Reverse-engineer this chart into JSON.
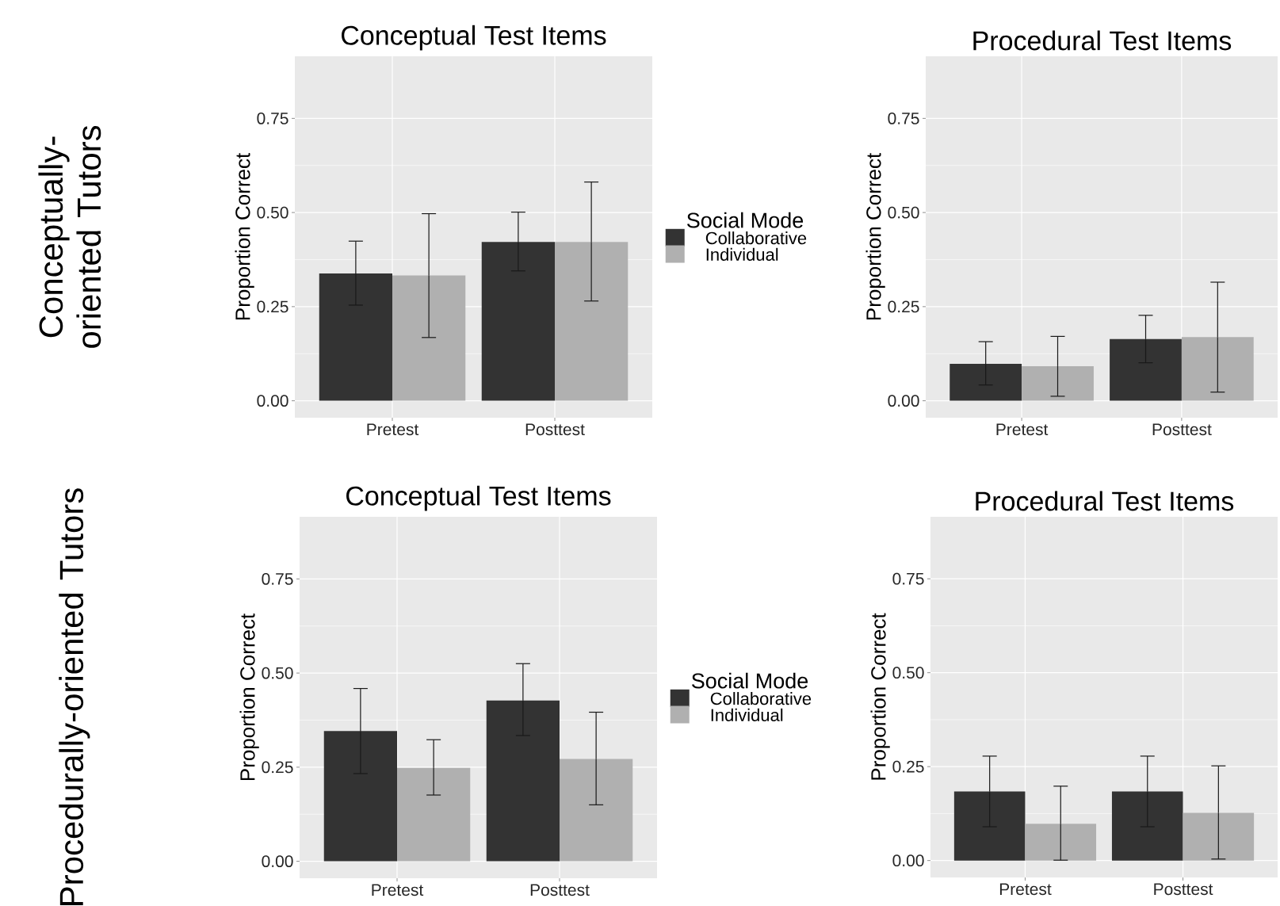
{
  "chart_data": [
    {
      "type": "bar",
      "title": "Conceptual Test Items",
      "ylabel": "Proportion Correct",
      "legend_title": "Social Mode",
      "legend": "right",
      "grid": true,
      "annotations": [
        "Conceptually-oriented Tutors"
      ],
      "categories": [
        "Pretest",
        "Posttest"
      ],
      "ylim": [
        -0.045,
        0.915
      ],
      "yticks": [
        {
          "value": 0,
          "label": "0.00"
        },
        {
          "value": 0.25,
          "label": "0.25"
        },
        {
          "value": 0.5,
          "label": "0.50"
        },
        {
          "value": 0.75,
          "label": "0.75"
        }
      ],
      "series": [
        {
          "name": "Collaborative",
          "color": "#333333",
          "values": [
            0.338,
            0.422
          ],
          "errors": [
            [
              0.254,
              0.424
            ],
            [
              0.345,
              0.501
            ]
          ]
        },
        {
          "name": "Individual",
          "color": "#b0b0b0",
          "values": [
            0.333,
            0.422
          ],
          "errors": [
            [
              0.168,
              0.497
            ],
            [
              0.265,
              0.581
            ]
          ]
        }
      ]
    },
    {
      "type": "bar",
      "title": "Procedural Test Items",
      "ylabel": "Proportion Correct",
      "grid": true,
      "categories": [
        "Pretest",
        "Posttest"
      ],
      "ylim": [
        -0.045,
        0.915
      ],
      "yticks": [
        {
          "value": 0,
          "label": "0.00"
        },
        {
          "value": 0.25,
          "label": "0.25"
        },
        {
          "value": 0.5,
          "label": "0.50"
        },
        {
          "value": 0.75,
          "label": "0.75"
        }
      ],
      "series": [
        {
          "color": "#333333",
          "values": [
            0.098,
            0.164
          ],
          "errors": [
            [
              0.042,
              0.157
            ],
            [
              0.101,
              0.227
            ]
          ]
        },
        {
          "color": "#b0b0b0",
          "values": [
            0.092,
            0.169
          ],
          "errors": [
            [
              0.012,
              0.171
            ],
            [
              0.023,
              0.315
            ]
          ]
        }
      ]
    },
    {
      "type": "bar",
      "title": "Conceptual Test Items",
      "ylabel": "Proportion Correct",
      "legend_title": "Social Mode",
      "legend": "right",
      "grid": true,
      "annotations": [
        "Procedurally-oriented Tutors"
      ],
      "categories": [
        "Pretest",
        "Posttest"
      ],
      "ylim": [
        -0.045,
        0.915
      ],
      "yticks": [
        {
          "value": 0,
          "label": "0.00"
        },
        {
          "value": 0.25,
          "label": "0.25"
        },
        {
          "value": 0.5,
          "label": "0.50"
        },
        {
          "value": 0.75,
          "label": "0.75"
        }
      ],
      "series": [
        {
          "name": "Collaborative",
          "color": "#333333",
          "values": [
            0.346,
            0.427
          ],
          "errors": [
            [
              0.233,
              0.459
            ],
            [
              0.334,
              0.525
            ]
          ]
        },
        {
          "name": "Individual",
          "color": "#b0b0b0",
          "values": [
            0.248,
            0.272
          ],
          "errors": [
            [
              0.176,
              0.323
            ],
            [
              0.15,
              0.396
            ]
          ]
        }
      ]
    },
    {
      "type": "bar",
      "title": "Procedural Test Items",
      "ylabel": "Proportion Correct",
      "grid": true,
      "categories": [
        "Pretest",
        "Posttest"
      ],
      "ylim": [
        -0.045,
        0.915
      ],
      "yticks": [
        {
          "value": 0,
          "label": "0.00"
        },
        {
          "value": 0.25,
          "label": "0.25"
        },
        {
          "value": 0.5,
          "label": "0.50"
        },
        {
          "value": 0.75,
          "label": "0.75"
        }
      ],
      "series": [
        {
          "color": "#333333",
          "values": [
            0.184,
            0.184
          ],
          "errors": [
            [
              0.09,
              0.278
            ],
            [
              0.09,
              0.278
            ]
          ]
        },
        {
          "color": "#b0b0b0",
          "values": [
            0.098,
            0.127
          ],
          "errors": [
            [
              0.001,
              0.198
            ],
            [
              0.004,
              0.252
            ]
          ]
        }
      ]
    }
  ]
}
